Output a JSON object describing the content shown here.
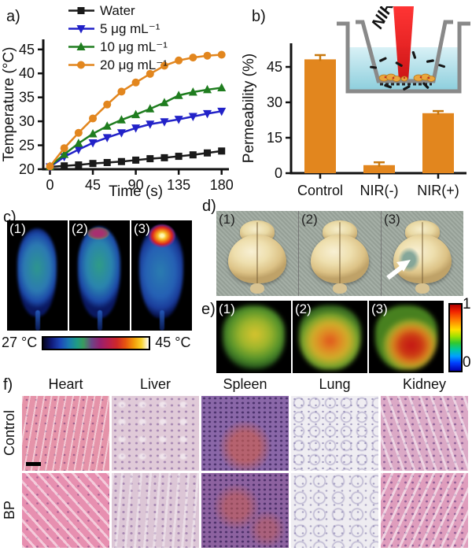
{
  "chart_data": [
    {
      "type": "line",
      "panel": "a",
      "title": "",
      "xlabel": "Time (s)",
      "ylabel": "Temperature (°C)",
      "xticks": [
        0,
        45,
        90,
        135,
        180
      ],
      "yticks": [
        20,
        25,
        30,
        35,
        40,
        45
      ],
      "xlim": [
        0,
        186
      ],
      "ylim": [
        20,
        47
      ],
      "grid": false,
      "legend_position": "top-left",
      "x": [
        0,
        15,
        30,
        45,
        60,
        75,
        90,
        105,
        120,
        135,
        150,
        165,
        180
      ],
      "series": [
        {
          "name": "Water",
          "color": "#1a1a1a",
          "marker": "square",
          "values": [
            20.5,
            20.7,
            20.9,
            21.2,
            21.4,
            21.6,
            21.9,
            22.2,
            22.4,
            22.7,
            23.0,
            23.4,
            23.8
          ]
        },
        {
          "name": "5 μg mL⁻¹",
          "color": "#2222c8",
          "marker": "triangle-down",
          "values": [
            20.5,
            22.6,
            24.1,
            25.5,
            26.6,
            27.6,
            28.6,
            29.4,
            29.9,
            30.4,
            31.0,
            31.6,
            32.1
          ]
        },
        {
          "name": "10 μg mL⁻¹",
          "color": "#1f7d1f",
          "marker": "triangle-up",
          "values": [
            20.6,
            23.1,
            25.4,
            27.4,
            29.0,
            30.3,
            31.4,
            32.6,
            33.9,
            35.4,
            36.1,
            36.6,
            37.0
          ]
        },
        {
          "name": "20 μg mL⁻¹",
          "color": "#e2861e",
          "marker": "circle",
          "values": [
            20.6,
            24.4,
            27.6,
            30.6,
            33.5,
            36.2,
            38.1,
            39.9,
            41.6,
            42.7,
            43.3,
            43.7,
            43.9
          ]
        }
      ]
    },
    {
      "type": "bar",
      "panel": "b",
      "title": "",
      "xlabel": "",
      "ylabel": "Permeability (%)",
      "categories": [
        "Control",
        "NIR(-)",
        "NIR(+)"
      ],
      "values": [
        48.2,
        3.4,
        25.4
      ],
      "errors": [
        1.8,
        1.2,
        0.9
      ],
      "yticks": [
        0,
        15,
        30,
        45
      ],
      "ylim": [
        0,
        55
      ],
      "bar_color": "#e2861e",
      "error_color": "#c8780e",
      "grid": false
    }
  ],
  "panels": {
    "a": {
      "label": "a)"
    },
    "b": {
      "label": "b)",
      "inset_label": "NIR"
    },
    "c": {
      "label": "c)",
      "image_labels": [
        "(1)",
        "(2)",
        "(3)"
      ],
      "colorbar_min": "27 °C",
      "colorbar_max": "45 °C"
    },
    "d": {
      "label": "d)",
      "image_labels": [
        "(1)",
        "(2)",
        "(3)"
      ]
    },
    "e": {
      "label": "e)",
      "image_labels": [
        "(1)",
        "(2)",
        "(3)"
      ],
      "colorbar_max": "1",
      "colorbar_min": "0"
    },
    "f": {
      "label": "f)",
      "columns": [
        "Heart",
        "Liver",
        "Spleen",
        "Lung",
        "Kidney"
      ],
      "rows": [
        "Control",
        "BP"
      ]
    }
  }
}
